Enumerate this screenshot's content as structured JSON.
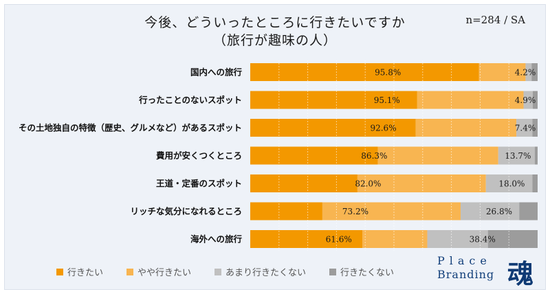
{
  "chart_data": {
    "type": "bar",
    "orientation": "horizontal",
    "stacked": true,
    "title": "今後、どういったところに行きたいですか",
    "subtitle": "（旅行が趣味の人）",
    "sample_note": "n=284 / SA",
    "xlim": [
      0,
      100
    ],
    "grid": true,
    "legend_position": "bottom",
    "categories": [
      "国内への旅行",
      "行ったことのないスポット",
      "その土地独自の特徴（歴史、グルメなど）があるスポット",
      "費用が安くつくところ",
      "王道・定番のスポット",
      "リッチな気分になれるところ",
      "海外への旅行"
    ],
    "series": [
      {
        "name": "行きたい",
        "color": "#f39800",
        "values": [
          79.6,
          58.1,
          57.6,
          44.4,
          37.3,
          25.1,
          39.0
        ]
      },
      {
        "name": "やや行きたい",
        "color": "#f8b551",
        "values": [
          16.2,
          37.0,
          35.0,
          41.9,
          44.7,
          48.1,
          22.6
        ]
      },
      {
        "name": "あまり行きたくない",
        "color": "#c0c0c0",
        "values": [
          2.1,
          3.2,
          5.6,
          12.7,
          16.2,
          20.4,
          21.1
        ]
      },
      {
        "name": "行きたくない",
        "color": "#9c9c9c",
        "values": [
          2.1,
          1.7,
          1.8,
          1.0,
          1.8,
          6.4,
          17.3
        ]
      }
    ],
    "combined_labels": {
      "positive": [
        "95.8%",
        "95.1%",
        "92.6%",
        "86.3%",
        "82.0%",
        "73.2%",
        "61.6%"
      ],
      "negative": [
        "4.2%",
        "4.9%",
        "7.4%",
        "13.7%",
        "18.0%",
        "26.8%",
        "38.4%"
      ]
    }
  },
  "logo": {
    "line1": "Place",
    "line2": "Branding",
    "kanji": "魂"
  }
}
